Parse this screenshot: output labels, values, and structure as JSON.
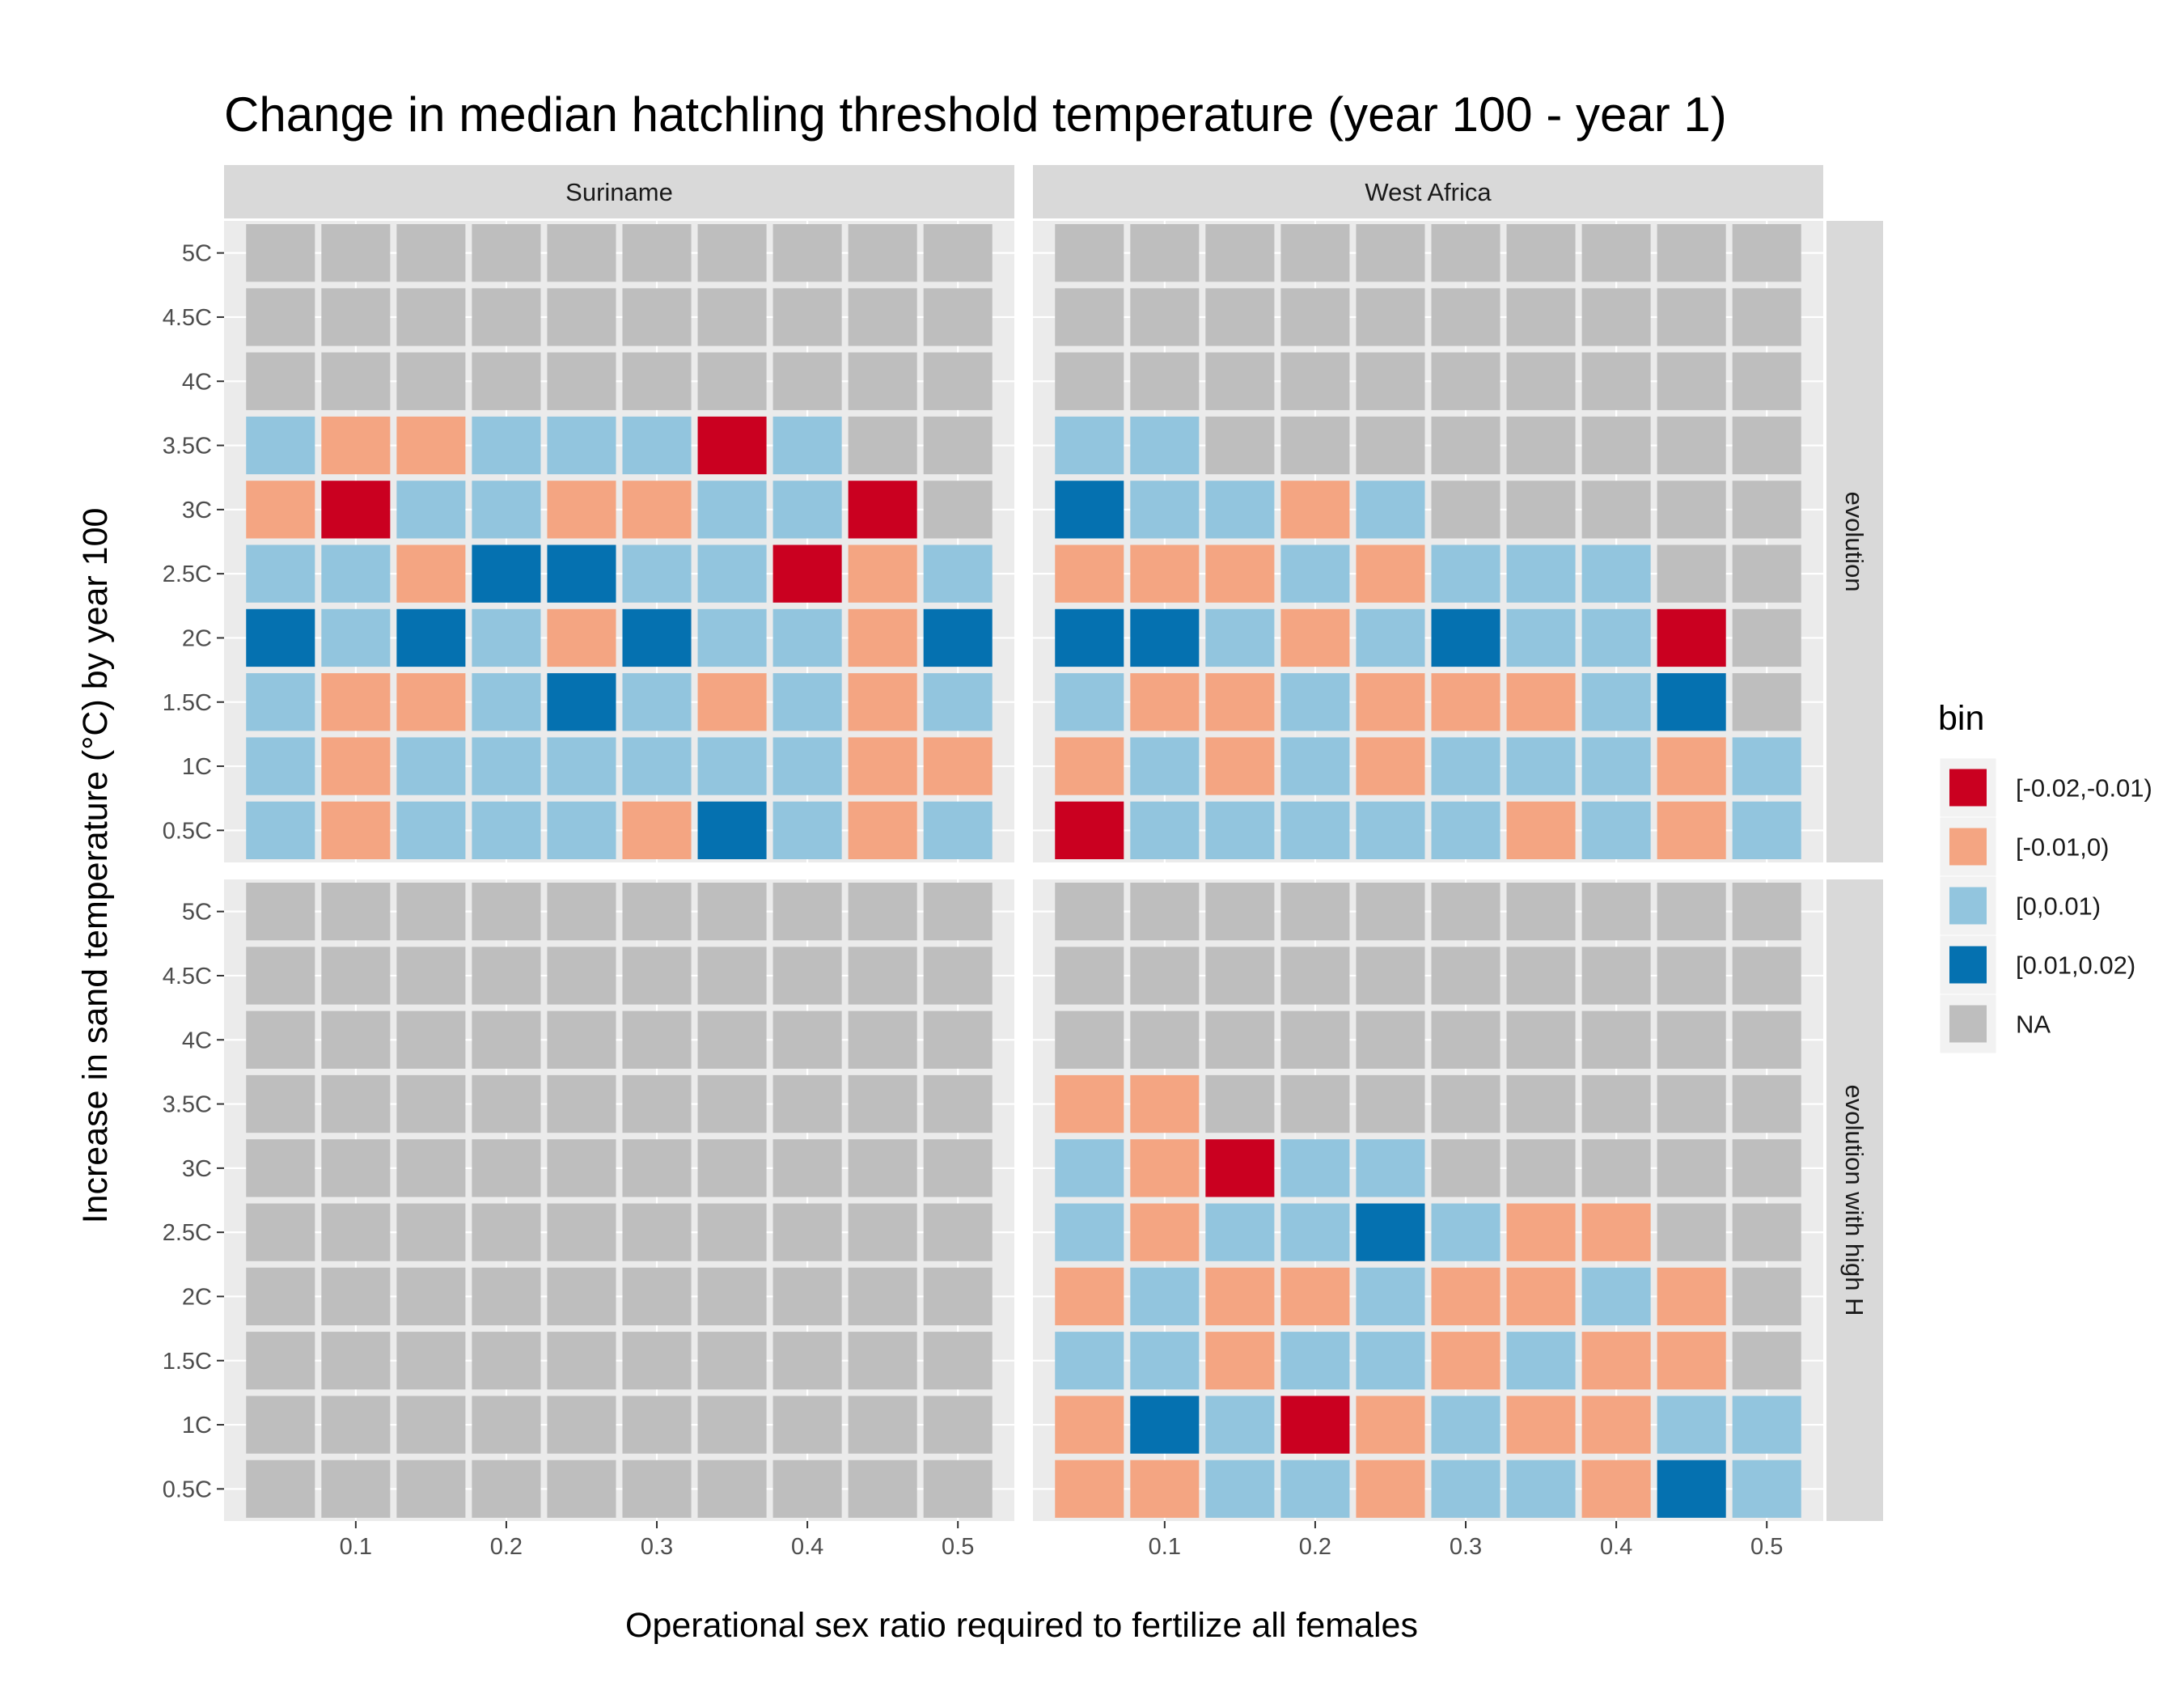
{
  "chart_data": {
    "type": "heatmap",
    "title": "Change in median hatchling threshold temperature (year 100 - year 1)",
    "xlabel": "Operational sex ratio required to fertilize all females",
    "ylabel": "Increase in sand temperature (°C) by year 100",
    "x": [
      0.05,
      0.1,
      0.15,
      0.2,
      0.25,
      0.3,
      0.35,
      0.4,
      0.45,
      0.5
    ],
    "x_ticks": [
      "0.1",
      "0.2",
      "0.3",
      "0.4",
      "0.5"
    ],
    "x_tick_values": [
      0.1,
      0.2,
      0.3,
      0.4,
      0.5
    ],
    "y_categories": [
      "0.5C",
      "1C",
      "1.5C",
      "2C",
      "2.5C",
      "3C",
      "3.5C",
      "4C",
      "4.5C",
      "5C"
    ],
    "facet_columns": [
      "Suriname",
      "West Africa"
    ],
    "facet_rows": [
      "evolution",
      "evolution with high H"
    ],
    "legend": {
      "title": "bin",
      "placement": "right",
      "categories": [
        "[-0.02,-0.01)",
        "[-0.01,0)",
        "[0,0.01)",
        "[0.01,0.02)",
        "NA"
      ],
      "colors": [
        "#ca0020",
        "#f4a582",
        "#92c5de",
        "#0571b0",
        "#bebebe"
      ]
    },
    "panels_note_codes": "rows of each grid are listed from 5C (top) down to 0.5C; codes: 0=[-0.02,-0.01), 1=[-0.01,0), 2=[0,0.01), 3=[0.01,0.02), 4=NA",
    "panels": [
      {
        "column": "Suriname",
        "row": "evolution",
        "grid": [
          [
            4,
            4,
            4,
            4,
            4,
            4,
            4,
            4,
            4,
            4
          ],
          [
            4,
            4,
            4,
            4,
            4,
            4,
            4,
            4,
            4,
            4
          ],
          [
            4,
            4,
            4,
            4,
            4,
            4,
            4,
            4,
            4,
            4
          ],
          [
            2,
            1,
            1,
            2,
            2,
            2,
            0,
            2,
            4,
            4
          ],
          [
            1,
            0,
            2,
            2,
            1,
            1,
            2,
            2,
            0,
            4
          ],
          [
            2,
            2,
            1,
            3,
            3,
            2,
            2,
            0,
            1,
            2
          ],
          [
            3,
            2,
            3,
            2,
            1,
            3,
            2,
            2,
            1,
            3
          ],
          [
            2,
            1,
            1,
            2,
            3,
            2,
            1,
            2,
            1,
            2
          ],
          [
            2,
            1,
            2,
            2,
            2,
            2,
            2,
            2,
            1,
            1
          ],
          [
            2,
            1,
            2,
            2,
            2,
            1,
            3,
            2,
            1,
            2
          ]
        ]
      },
      {
        "column": "West Africa",
        "row": "evolution",
        "grid": [
          [
            4,
            4,
            4,
            4,
            4,
            4,
            4,
            4,
            4,
            4
          ],
          [
            4,
            4,
            4,
            4,
            4,
            4,
            4,
            4,
            4,
            4
          ],
          [
            4,
            4,
            4,
            4,
            4,
            4,
            4,
            4,
            4,
            4
          ],
          [
            2,
            2,
            4,
            4,
            4,
            4,
            4,
            4,
            4,
            4
          ],
          [
            3,
            2,
            2,
            1,
            2,
            4,
            4,
            4,
            4,
            4
          ],
          [
            1,
            1,
            1,
            2,
            1,
            2,
            2,
            2,
            4,
            4
          ],
          [
            3,
            3,
            2,
            1,
            2,
            3,
            2,
            2,
            0,
            4
          ],
          [
            2,
            1,
            1,
            2,
            1,
            1,
            1,
            2,
            3,
            4
          ],
          [
            1,
            2,
            1,
            2,
            1,
            2,
            2,
            2,
            1,
            2
          ],
          [
            0,
            2,
            2,
            2,
            2,
            2,
            1,
            2,
            1,
            2
          ]
        ]
      },
      {
        "column": "Suriname",
        "row": "evolution with high H",
        "grid": [
          [
            4,
            4,
            4,
            4,
            4,
            4,
            4,
            4,
            4,
            4
          ],
          [
            4,
            4,
            4,
            4,
            4,
            4,
            4,
            4,
            4,
            4
          ],
          [
            4,
            4,
            4,
            4,
            4,
            4,
            4,
            4,
            4,
            4
          ],
          [
            4,
            4,
            4,
            4,
            4,
            4,
            4,
            4,
            4,
            4
          ],
          [
            4,
            4,
            4,
            4,
            4,
            4,
            4,
            4,
            4,
            4
          ],
          [
            4,
            4,
            4,
            4,
            4,
            4,
            4,
            4,
            4,
            4
          ],
          [
            4,
            4,
            4,
            4,
            4,
            4,
            4,
            4,
            4,
            4
          ],
          [
            4,
            4,
            4,
            4,
            4,
            4,
            4,
            4,
            4,
            4
          ],
          [
            4,
            4,
            4,
            4,
            4,
            4,
            4,
            4,
            4,
            4
          ],
          [
            4,
            4,
            4,
            4,
            4,
            4,
            4,
            4,
            4,
            4
          ]
        ]
      },
      {
        "column": "West Africa",
        "row": "evolution with high H",
        "grid": [
          [
            4,
            4,
            4,
            4,
            4,
            4,
            4,
            4,
            4,
            4
          ],
          [
            4,
            4,
            4,
            4,
            4,
            4,
            4,
            4,
            4,
            4
          ],
          [
            4,
            4,
            4,
            4,
            4,
            4,
            4,
            4,
            4,
            4
          ],
          [
            1,
            1,
            4,
            4,
            4,
            4,
            4,
            4,
            4,
            4
          ],
          [
            2,
            1,
            0,
            2,
            2,
            4,
            4,
            4,
            4,
            4
          ],
          [
            2,
            1,
            2,
            2,
            3,
            2,
            1,
            1,
            4,
            4
          ],
          [
            1,
            2,
            1,
            1,
            2,
            1,
            1,
            2,
            1,
            4
          ],
          [
            2,
            2,
            1,
            2,
            2,
            1,
            2,
            1,
            1,
            4
          ],
          [
            1,
            3,
            2,
            0,
            1,
            2,
            1,
            1,
            2,
            2
          ],
          [
            1,
            1,
            2,
            2,
            1,
            2,
            2,
            1,
            3,
            2
          ]
        ]
      }
    ]
  }
}
